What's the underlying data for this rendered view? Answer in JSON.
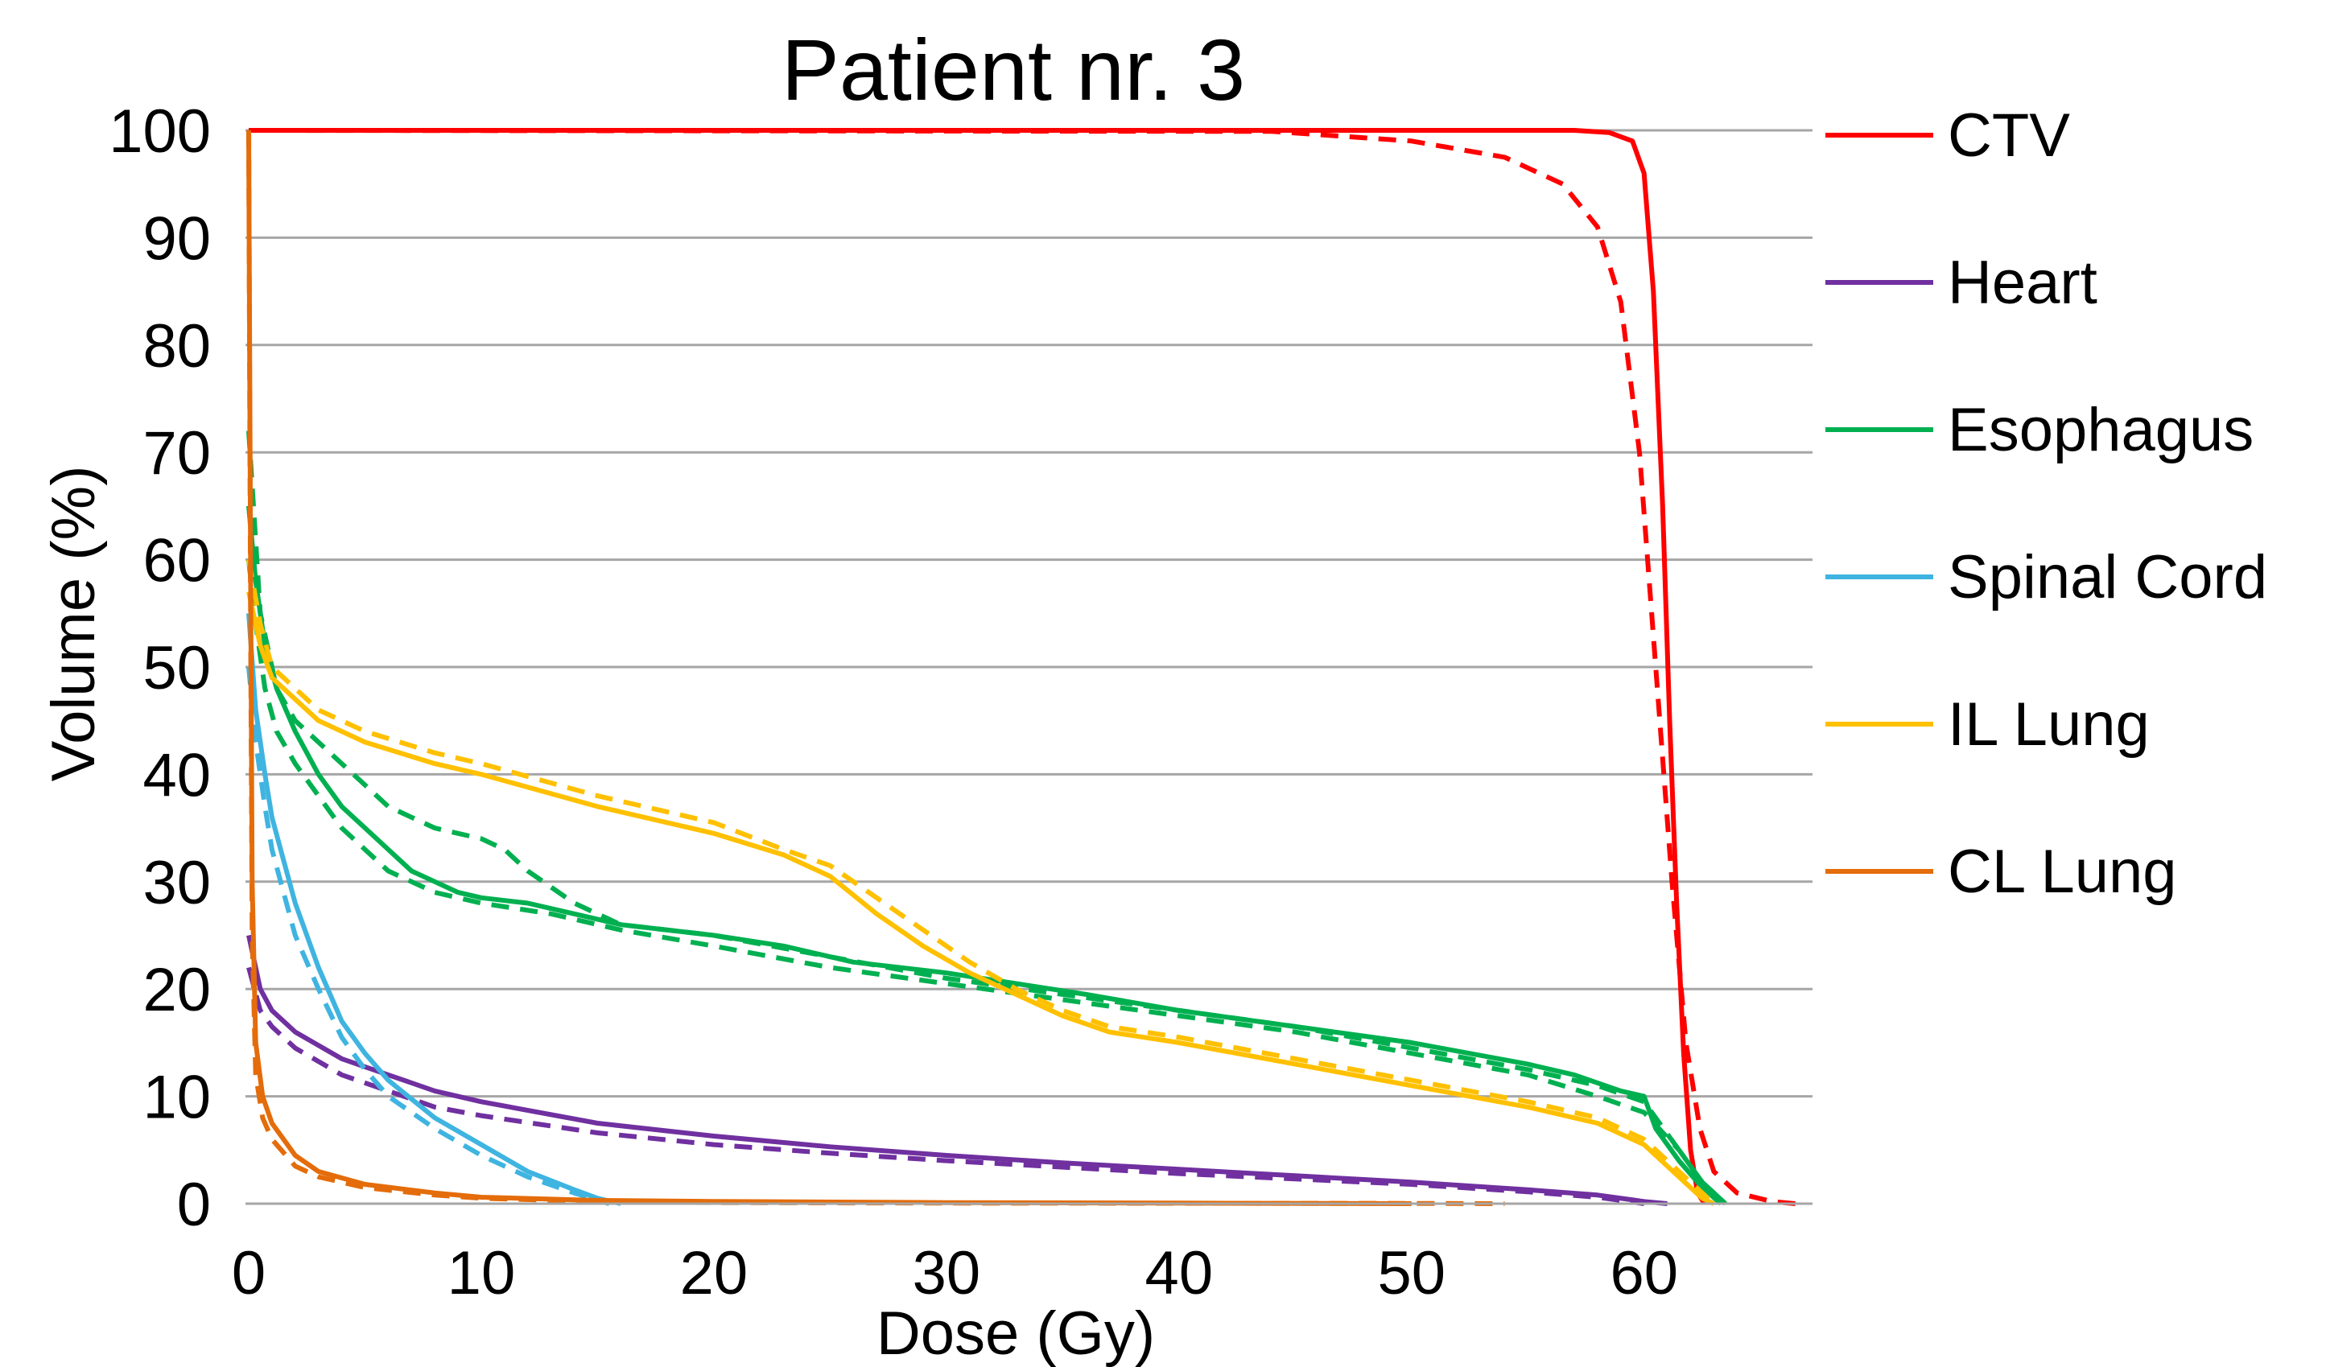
{
  "chart_data": {
    "type": "line",
    "title": "Patient nr. 3",
    "xlabel": "Dose (Gy)",
    "ylabel": "Volume (%)",
    "xlim": [
      0,
      67
    ],
    "ylim": [
      0,
      100
    ],
    "xticks": [
      0,
      10,
      20,
      30,
      40,
      50,
      60
    ],
    "yticks": [
      0,
      10,
      20,
      30,
      40,
      50,
      60,
      70,
      80,
      90,
      100
    ],
    "grid": "horizontal",
    "legend_position": "right",
    "line_styles": [
      "solid",
      "dashed"
    ],
    "series": [
      {
        "name": "CTV",
        "color": "#ff0000",
        "solid": [
          [
            0,
            100
          ],
          [
            57,
            100
          ],
          [
            58.5,
            99.8
          ],
          [
            59.5,
            99
          ],
          [
            60,
            96
          ],
          [
            60.4,
            85
          ],
          [
            60.8,
            65
          ],
          [
            61.1,
            45
          ],
          [
            61.4,
            28
          ],
          [
            61.7,
            14
          ],
          [
            62,
            5
          ],
          [
            62.3,
            1
          ],
          [
            62.6,
            0
          ]
        ],
        "dashed": [
          [
            0,
            100
          ],
          [
            44,
            99.9
          ],
          [
            50,
            99
          ],
          [
            54,
            97.5
          ],
          [
            56.5,
            95
          ],
          [
            58,
            91
          ],
          [
            59,
            84
          ],
          [
            59.8,
            70
          ],
          [
            60.5,
            50
          ],
          [
            61.2,
            30
          ],
          [
            61.8,
            15
          ],
          [
            62.4,
            7
          ],
          [
            63,
            3
          ],
          [
            64,
            1
          ],
          [
            65.5,
            0.2
          ],
          [
            66.5,
            0
          ]
        ]
      },
      {
        "name": "Heart",
        "color": "#7030a0",
        "solid": [
          [
            0,
            25
          ],
          [
            0.5,
            20
          ],
          [
            1,
            18
          ],
          [
            2,
            16
          ],
          [
            4,
            13.5
          ],
          [
            6,
            12
          ],
          [
            8,
            10.5
          ],
          [
            10,
            9.5
          ],
          [
            15,
            7.5
          ],
          [
            20,
            6.3
          ],
          [
            25,
            5.3
          ],
          [
            30,
            4.5
          ],
          [
            35,
            3.8
          ],
          [
            40,
            3.2
          ],
          [
            45,
            2.6
          ],
          [
            50,
            2
          ],
          [
            55,
            1.3
          ],
          [
            58,
            0.8
          ],
          [
            60,
            0.2
          ],
          [
            61,
            0
          ]
        ],
        "dashed": [
          [
            0,
            22
          ],
          [
            0.5,
            18
          ],
          [
            1,
            16.5
          ],
          [
            2,
            14.5
          ],
          [
            4,
            12
          ],
          [
            6,
            10.5
          ],
          [
            8,
            9
          ],
          [
            10,
            8.2
          ],
          [
            15,
            6.6
          ],
          [
            20,
            5.5
          ],
          [
            25,
            4.7
          ],
          [
            30,
            4
          ],
          [
            35,
            3.4
          ],
          [
            40,
            2.8
          ],
          [
            45,
            2.3
          ],
          [
            50,
            1.8
          ],
          [
            55,
            1.1
          ],
          [
            58,
            0.6
          ],
          [
            60,
            0
          ]
        ]
      },
      {
        "name": "Esophagus",
        "color": "#00b050",
        "solid": [
          [
            0,
            65
          ],
          [
            0.3,
            58
          ],
          [
            0.7,
            52
          ],
          [
            1.2,
            48
          ],
          [
            2,
            44
          ],
          [
            3,
            40
          ],
          [
            4,
            37
          ],
          [
            5,
            35
          ],
          [
            6,
            33
          ],
          [
            7,
            31
          ],
          [
            8,
            30
          ],
          [
            9,
            29
          ],
          [
            10,
            28.5
          ],
          [
            12,
            28
          ],
          [
            14,
            27
          ],
          [
            16,
            26
          ],
          [
            20,
            25
          ],
          [
            23,
            24
          ],
          [
            26,
            22.5
          ],
          [
            30,
            21.5
          ],
          [
            33,
            20.5
          ],
          [
            36,
            19.5
          ],
          [
            40,
            18
          ],
          [
            45,
            16.5
          ],
          [
            50,
            15
          ],
          [
            55,
            13
          ],
          [
            57,
            12
          ],
          [
            59,
            10.5
          ],
          [
            60,
            10
          ],
          [
            60.5,
            7
          ],
          [
            61.5,
            4
          ],
          [
            62.5,
            1.5
          ],
          [
            63.3,
            0
          ]
        ],
        "dashed": [
          [
            0,
            60
          ],
          [
            0.3,
            54
          ],
          [
            0.7,
            48
          ],
          [
            1.2,
            44
          ],
          [
            2,
            41
          ],
          [
            3,
            38
          ],
          [
            4,
            35
          ],
          [
            5,
            33
          ],
          [
            6,
            31
          ],
          [
            7,
            30
          ],
          [
            8,
            29
          ],
          [
            10,
            28
          ],
          [
            13,
            27
          ],
          [
            16,
            25.5
          ],
          [
            20,
            24
          ],
          [
            25,
            22
          ],
          [
            30,
            20.5
          ],
          [
            35,
            19
          ],
          [
            40,
            17.5
          ],
          [
            45,
            16
          ],
          [
            50,
            14
          ],
          [
            55,
            12
          ],
          [
            58,
            10
          ],
          [
            60,
            8.5
          ],
          [
            61.5,
            5
          ],
          [
            62.5,
            2
          ],
          [
            63.5,
            0
          ]
        ]
      },
      {
        "name": "Esophagus",
        "color": "#00b050",
        "solid": [],
        "dashed": [
          [
            0,
            72
          ],
          [
            0.5,
            55
          ],
          [
            1.2,
            48
          ],
          [
            2,
            45
          ],
          [
            3,
            43
          ],
          [
            4,
            41
          ],
          [
            5,
            39
          ],
          [
            6,
            37
          ],
          [
            7,
            36
          ],
          [
            8,
            35
          ],
          [
            9,
            34.5
          ],
          [
            10,
            34
          ],
          [
            11,
            33
          ],
          [
            12,
            31
          ],
          [
            14,
            28
          ],
          [
            16,
            26
          ],
          [
            20,
            25
          ],
          [
            25,
            23
          ],
          [
            30,
            21
          ],
          [
            35,
            19.5
          ],
          [
            40,
            18
          ],
          [
            45,
            16.5
          ],
          [
            50,
            14.5
          ],
          [
            55,
            12.5
          ],
          [
            58,
            11
          ],
          [
            60,
            9.5
          ],
          [
            61.5,
            5
          ],
          [
            62.5,
            2
          ],
          [
            63.5,
            0
          ]
        ]
      },
      {
        "name": "Spinal Cord",
        "color": "#3fb4e0",
        "solid": [
          [
            0,
            55
          ],
          [
            0.3,
            46
          ],
          [
            0.7,
            40
          ],
          [
            1,
            36
          ],
          [
            1.5,
            32
          ],
          [
            2,
            28
          ],
          [
            3,
            22
          ],
          [
            4,
            17
          ],
          [
            5,
            14
          ],
          [
            6,
            11.5
          ],
          [
            8,
            8
          ],
          [
            10,
            5.5
          ],
          [
            12,
            3
          ],
          [
            14,
            1.3
          ],
          [
            15,
            0.5
          ],
          [
            16,
            0
          ]
        ],
        "dashed": [
          [
            0,
            50
          ],
          [
            0.3,
            43
          ],
          [
            0.7,
            37
          ],
          [
            1,
            33
          ],
          [
            1.5,
            29
          ],
          [
            2,
            25
          ],
          [
            3,
            20
          ],
          [
            4,
            15.5
          ],
          [
            5,
            12.5
          ],
          [
            6,
            10
          ],
          [
            8,
            7
          ],
          [
            10,
            4.5
          ],
          [
            12,
            2.5
          ],
          [
            14,
            1
          ],
          [
            15.5,
            0
          ]
        ]
      },
      {
        "name": "IL Lung",
        "color": "#ffc000",
        "solid": [
          [
            0,
            57
          ],
          [
            0.5,
            52
          ],
          [
            1,
            49
          ],
          [
            2,
            47
          ],
          [
            3,
            45
          ],
          [
            5,
            43
          ],
          [
            8,
            41
          ],
          [
            10,
            40
          ],
          [
            15,
            37
          ],
          [
            20,
            34.5
          ],
          [
            23,
            32.5
          ],
          [
            25,
            30.5
          ],
          [
            27,
            27
          ],
          [
            29,
            24
          ],
          [
            31,
            21.5
          ],
          [
            33,
            19.5
          ],
          [
            35,
            17.5
          ],
          [
            37,
            16
          ],
          [
            40,
            15
          ],
          [
            45,
            13
          ],
          [
            50,
            11
          ],
          [
            55,
            9
          ],
          [
            58,
            7.5
          ],
          [
            60,
            5.5
          ],
          [
            61,
            3.5
          ],
          [
            62,
            1.5
          ],
          [
            62.5,
            0.5
          ],
          [
            63,
            0
          ]
        ],
        "dashed": [
          [
            0,
            60
          ],
          [
            0.5,
            54
          ],
          [
            1,
            50
          ],
          [
            2,
            48
          ],
          [
            3,
            46
          ],
          [
            5,
            44
          ],
          [
            8,
            42
          ],
          [
            10,
            41
          ],
          [
            15,
            38
          ],
          [
            20,
            35.5
          ],
          [
            23,
            33
          ],
          [
            25,
            31.5
          ],
          [
            27,
            28.5
          ],
          [
            29,
            25.5
          ],
          [
            31,
            22.5
          ],
          [
            33,
            20
          ],
          [
            35,
            18
          ],
          [
            37,
            16.5
          ],
          [
            40,
            15.5
          ],
          [
            45,
            13.5
          ],
          [
            50,
            11.5
          ],
          [
            55,
            9.5
          ],
          [
            58,
            8
          ],
          [
            60,
            6
          ],
          [
            61,
            4
          ],
          [
            62,
            2
          ],
          [
            63,
            0
          ]
        ]
      },
      {
        "name": "CL Lung",
        "color": "#e46c0a",
        "solid": [
          [
            0,
            100
          ],
          [
            0.08,
            60
          ],
          [
            0.15,
            30
          ],
          [
            0.3,
            15
          ],
          [
            0.6,
            10
          ],
          [
            1,
            7.5
          ],
          [
            2,
            4.5
          ],
          [
            3,
            3
          ],
          [
            5,
            1.8
          ],
          [
            8,
            1
          ],
          [
            10,
            0.6
          ],
          [
            15,
            0.3
          ],
          [
            20,
            0.2
          ],
          [
            30,
            0.1
          ],
          [
            40,
            0.05
          ],
          [
            50,
            0
          ]
        ],
        "dashed": [
          [
            0,
            100
          ],
          [
            0.08,
            55
          ],
          [
            0.15,
            25
          ],
          [
            0.3,
            12
          ],
          [
            0.6,
            8
          ],
          [
            1,
            6
          ],
          [
            2,
            3.5
          ],
          [
            3,
            2.5
          ],
          [
            5,
            1.5
          ],
          [
            8,
            0.8
          ],
          [
            10,
            0.5
          ],
          [
            15,
            0.2
          ],
          [
            20,
            0.1
          ],
          [
            30,
            0.05
          ],
          [
            50,
            0.02
          ],
          [
            54,
            0
          ]
        ]
      }
    ]
  }
}
